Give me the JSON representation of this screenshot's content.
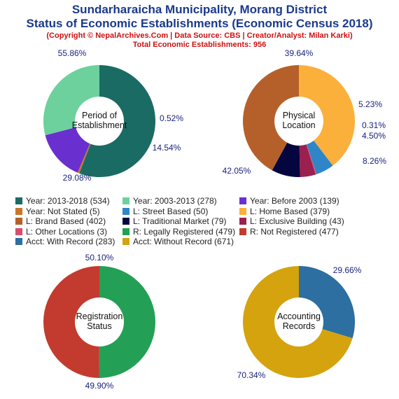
{
  "header": {
    "title_line1": "Sundarharaicha Municipality, Morang District",
    "title_line2": "Status of Economic Establishments (Economic Census 2018)",
    "subtitle_line1": "(Copyright © NepalArchives.Com | Data Source: CBS | Creator/Analyst: Milan Karki)",
    "subtitle_line2": "Total Economic Establishments: 956"
  },
  "chart_data": [
    {
      "type": "pie",
      "center_label": [
        "Period of",
        "Establishment"
      ],
      "slices": [
        {
          "label": "Year: 2013-2018 (534)",
          "value": 534,
          "percent": "55.86%",
          "color": "#1a6b64"
        },
        {
          "label": "Year: Not Stated (5)",
          "value": 5,
          "percent": "0.52%",
          "color": "#c8762a"
        },
        {
          "label": "Year: Before 2003 (139)",
          "value": 139,
          "percent": "14.54%",
          "color": "#6a2fcf"
        },
        {
          "label": "Year: 2003-2013 (278)",
          "value": 278,
          "percent": "29.08%",
          "color": "#6dd19e"
        }
      ]
    },
    {
      "type": "pie",
      "center_label": [
        "Physical",
        "Location"
      ],
      "slices": [
        {
          "label": "L: Home Based (379)",
          "value": 379,
          "percent": "39.64%",
          "color": "#fbb03b"
        },
        {
          "label": "L: Street Based (50)",
          "value": 50,
          "percent": "5.23%",
          "color": "#2e86c8"
        },
        {
          "label": "L: Other Locations (3)",
          "value": 3,
          "percent": "0.31%",
          "color": "#d94c6e"
        },
        {
          "label": "L: Exclusive Building (43)",
          "value": 43,
          "percent": "4.50%",
          "color": "#9b1f4f"
        },
        {
          "label": "L: Traditional Market (79)",
          "value": 79,
          "percent": "8.26%",
          "color": "#05063f"
        },
        {
          "label": "L: Brand Based (402)",
          "value": 402,
          "percent": "42.05%",
          "color": "#b5602a"
        }
      ]
    },
    {
      "type": "pie",
      "center_label": [
        "Registration",
        "Status"
      ],
      "slices": [
        {
          "label": "R: Legally Registered (479)",
          "value": 479,
          "percent": "50.10%",
          "color": "#23a055"
        },
        {
          "label": "R: Not Registered (477)",
          "value": 477,
          "percent": "49.90%",
          "color": "#c23b2e"
        }
      ]
    },
    {
      "type": "pie",
      "center_label": [
        "Accounting",
        "Records"
      ],
      "slices": [
        {
          "label": "Acct: With Record (283)",
          "value": 283,
          "percent": "29.66%",
          "color": "#2c6fa0"
        },
        {
          "label": "Acct: Without Record (671)",
          "value": 671,
          "percent": "70.34%",
          "color": "#d4a30e"
        }
      ]
    }
  ],
  "legend": [
    {
      "label": "Year: 2013-2018 (534)",
      "color": "#1a6b64"
    },
    {
      "label": "Year: 2003-2013 (278)",
      "color": "#6dd19e"
    },
    {
      "label": "Year: Before 2003 (139)",
      "color": "#6a2fcf"
    },
    {
      "label": "Year: Not Stated (5)",
      "color": "#c8762a"
    },
    {
      "label": "L: Street Based (50)",
      "color": "#2e86c8"
    },
    {
      "label": "L: Home Based (379)",
      "color": "#fbb03b"
    },
    {
      "label": "L: Brand Based (402)",
      "color": "#b5602a"
    },
    {
      "label": "L: Traditional Market (79)",
      "color": "#05063f"
    },
    {
      "label": "L: Exclusive Building (43)",
      "color": "#9b1f4f"
    },
    {
      "label": "L: Other Locations (3)",
      "color": "#d94c6e"
    },
    {
      "label": "R: Legally Registered (479)",
      "color": "#23a055"
    },
    {
      "label": "R: Not Registered (477)",
      "color": "#c23b2e"
    },
    {
      "label": "Acct: With Record (283)",
      "color": "#2c6fa0"
    },
    {
      "label": "Acct: Without Record (671)",
      "color": "#d4a30e"
    }
  ]
}
